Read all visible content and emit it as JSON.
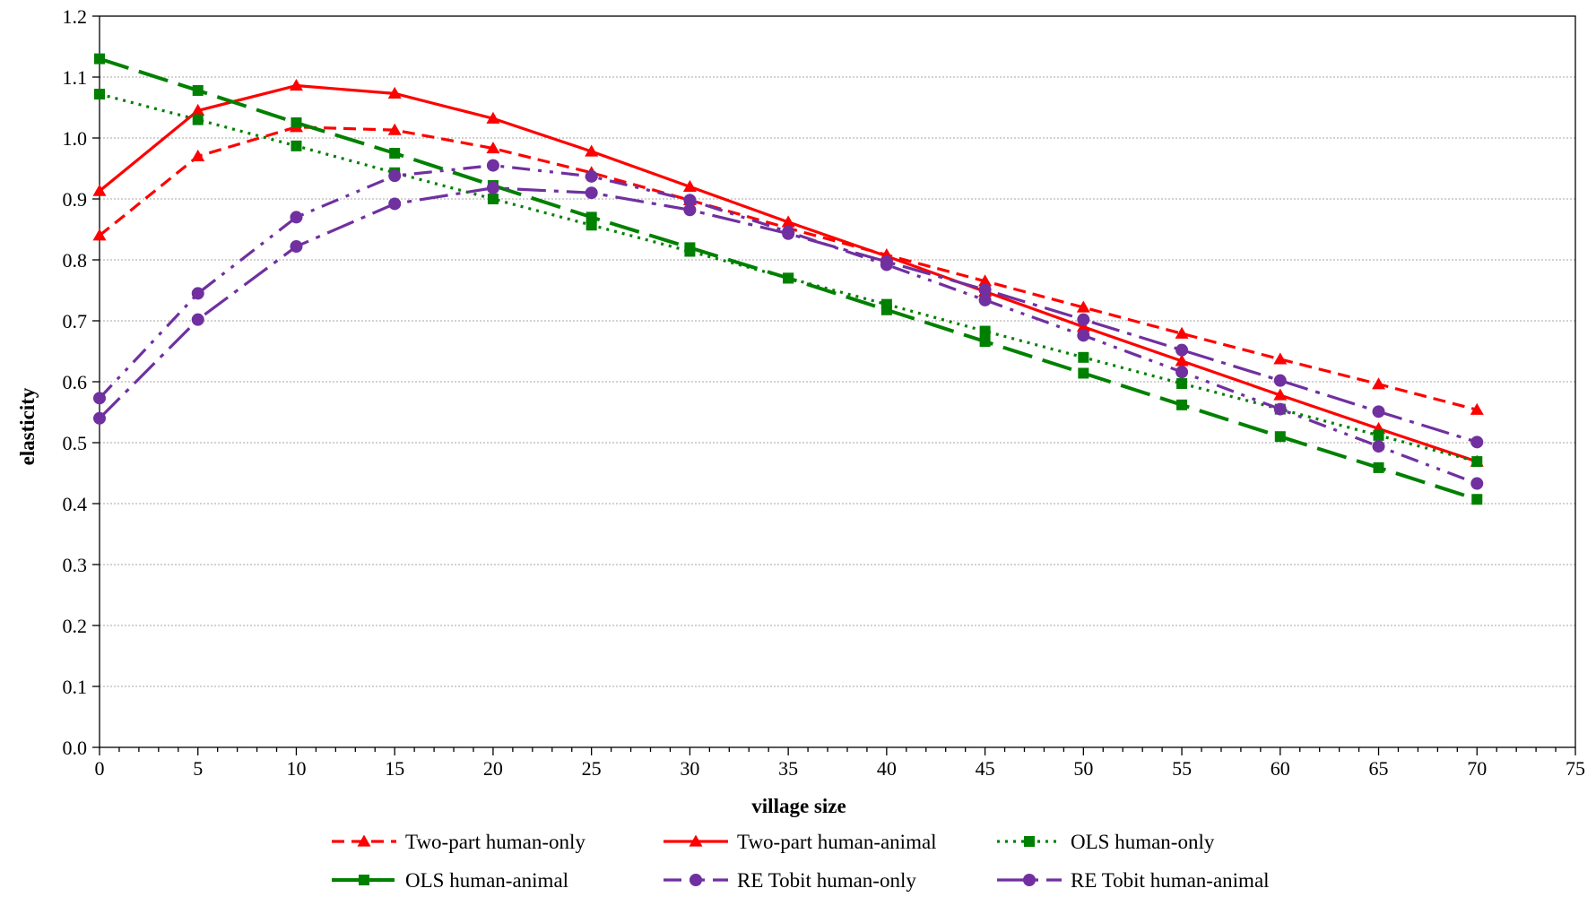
{
  "chart_data": {
    "type": "line",
    "title": "",
    "xlabel": "village size",
    "ylabel": "elasticity",
    "xlim": [
      0,
      75
    ],
    "ylim": [
      0,
      1.2
    ],
    "x_ticks": [
      "0",
      "5",
      "10",
      "15",
      "20",
      "25",
      "30",
      "35",
      "40",
      "45",
      "50",
      "55",
      "60",
      "65",
      "70",
      "75"
    ],
    "y_ticks": [
      "0.0",
      "0.1",
      "0.2",
      "0.3",
      "0.4",
      "0.5",
      "0.6",
      "0.7",
      "0.8",
      "0.9",
      "1.0",
      "1.1",
      "1.2"
    ],
    "grid": "horizontal",
    "legend_position": "bottom",
    "x": [
      0,
      5,
      10,
      15,
      20,
      25,
      30,
      35,
      40,
      45,
      50,
      55,
      60,
      65,
      70
    ],
    "series": [
      {
        "name": "Two-part human-only",
        "color": "#ff0000",
        "marker": "triangle",
        "line": "dashed",
        "values": [
          0.84,
          0.97,
          1.018,
          1.013,
          0.983,
          0.943,
          0.898,
          0.852,
          0.808,
          0.765,
          0.722,
          0.679,
          0.637,
          0.596,
          0.554
        ]
      },
      {
        "name": "Two-part human-animal",
        "color": "#ff0000",
        "marker": "triangle",
        "line": "solid",
        "values": [
          0.913,
          1.045,
          1.086,
          1.073,
          1.032,
          0.978,
          0.92,
          0.862,
          0.806,
          0.748,
          0.69,
          0.634,
          0.578,
          0.523,
          0.469
        ]
      },
      {
        "name": "OLS human-only",
        "color": "#008000",
        "marker": "square",
        "line": "dotted",
        "values": [
          1.072,
          1.03,
          0.987,
          0.943,
          0.9,
          0.857,
          0.814,
          0.77,
          0.727,
          0.683,
          0.64,
          0.597,
          0.555,
          0.512,
          0.469
        ]
      },
      {
        "name": "OLS human-animal",
        "color": "#008000",
        "marker": "square",
        "line": "long-dash",
        "values": [
          1.13,
          1.078,
          1.025,
          0.975,
          0.922,
          0.87,
          0.82,
          0.77,
          0.718,
          0.666,
          0.614,
          0.562,
          0.51,
          0.459,
          0.407
        ]
      },
      {
        "name": "RE Tobit human-only",
        "color": "#7030a0",
        "marker": "circle",
        "line": "dash-dot-dot",
        "values": [
          0.573,
          0.745,
          0.87,
          0.938,
          0.955,
          0.937,
          0.898,
          0.846,
          0.792,
          0.734,
          0.676,
          0.616,
          0.555,
          0.494,
          0.433
        ]
      },
      {
        "name": "RE Tobit human-animal",
        "color": "#7030a0",
        "marker": "circle",
        "line": "dash-dot",
        "values": [
          0.54,
          0.702,
          0.822,
          0.892,
          0.918,
          0.91,
          0.882,
          0.843,
          0.797,
          0.751,
          0.702,
          0.652,
          0.602,
          0.551,
          0.501
        ]
      }
    ]
  }
}
